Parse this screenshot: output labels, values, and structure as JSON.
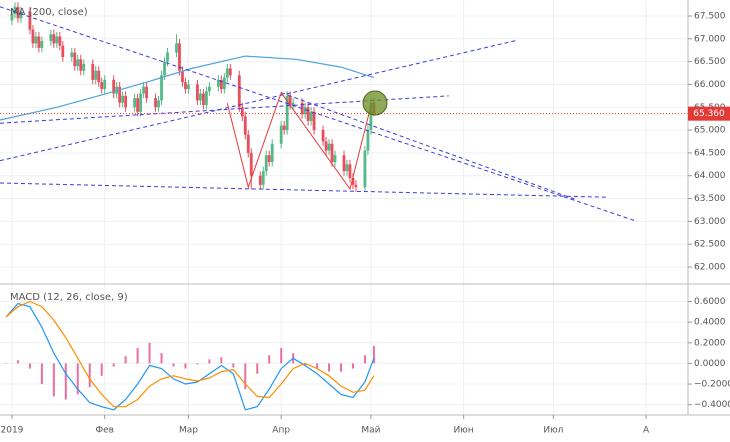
{
  "chart_data": [
    {
      "type": "candlestick",
      "up_color": "#53b987",
      "down_color": "#eb4d5c",
      "xlim": [
        -4,
        225
      ],
      "ylim": [
        61.65,
        67.85
      ],
      "yticks": [
        {
          "value": 67.5,
          "label": "67.500"
        },
        {
          "value": 67.0,
          "label": "67.000"
        },
        {
          "value": 66.5,
          "label": "66.500"
        },
        {
          "value": 66.0,
          "label": "66.000"
        },
        {
          "value": 65.5,
          "label": "65.500"
        },
        {
          "value": 65.0,
          "label": "65.000"
        },
        {
          "value": 64.5,
          "label": "64.500"
        },
        {
          "value": 64.0,
          "label": "64.000"
        },
        {
          "value": 63.5,
          "label": "63.500"
        },
        {
          "value": 63.0,
          "label": "63.000"
        },
        {
          "value": 62.5,
          "label": "62.500"
        },
        {
          "value": 62.0,
          "label": "62.000"
        }
      ],
      "grid": true,
      "x": [
        0,
        1,
        2,
        3,
        6,
        7,
        8,
        9,
        10,
        13,
        14,
        15,
        16,
        17,
        20,
        21,
        22,
        23,
        24,
        27,
        28,
        29,
        30,
        31,
        34,
        35,
        36,
        37,
        38,
        41,
        42,
        43,
        44,
        45,
        48,
        49,
        50,
        51,
        52,
        55,
        56,
        57,
        58,
        59,
        62,
        63,
        64,
        65,
        66,
        69,
        70,
        71,
        72,
        73,
        76,
        77,
        78,
        79,
        80,
        83,
        84,
        85,
        86,
        87,
        90,
        91,
        92,
        93,
        94,
        97,
        98,
        99,
        100,
        101,
        104,
        105,
        106,
        107,
        108,
        111,
        112,
        113,
        114,
        115,
        118,
        119,
        120,
        121
      ],
      "open": [
        67.4,
        67.55,
        67.7,
        67.45,
        67.6,
        67.2,
        66.9,
        67.05,
        66.8,
        66.95,
        67.1,
        66.9,
        67.05,
        66.85,
        66.6,
        66.7,
        66.4,
        66.55,
        66.3,
        66.45,
        66.1,
        66.3,
        66.05,
        65.9,
        66.1,
        65.8,
        65.95,
        65.6,
        65.75,
        65.5,
        65.7,
        65.4,
        65.8,
        65.95,
        65.7,
        65.5,
        65.65,
        66.2,
        66.5,
        66.7,
        66.9,
        66.3,
        66.05,
        65.9,
        66.0,
        65.65,
        65.8,
        65.55,
        65.85,
        65.95,
        66.1,
        65.9,
        66.15,
        66.35,
        66.2,
        65.5,
        65.3,
        64.9,
        64.5,
        64.0,
        63.8,
        64.1,
        64.45,
        64.3,
        64.7,
        65.1,
        65.0,
        65.75,
        65.55,
        65.6,
        65.35,
        65.5,
        65.2,
        65.4,
        65.0,
        64.75,
        64.55,
        64.7,
        64.3,
        64.45,
        64.1,
        64.25,
        63.95,
        63.8,
        63.75,
        64.55,
        65.0,
        65.6
      ],
      "high": [
        67.65,
        67.8,
        67.8,
        67.7,
        67.7,
        67.3,
        67.15,
        67.15,
        67.05,
        67.2,
        67.2,
        67.15,
        67.15,
        66.95,
        66.8,
        66.8,
        66.65,
        66.65,
        66.55,
        66.55,
        66.4,
        66.4,
        66.15,
        66.2,
        66.2,
        66.05,
        66.05,
        65.85,
        65.85,
        65.8,
        65.8,
        65.9,
        66.05,
        66.05,
        65.8,
        65.75,
        66.3,
        66.6,
        66.8,
        67.1,
        67.0,
        66.4,
        66.15,
        66.1,
        66.1,
        65.9,
        65.9,
        65.95,
        66.05,
        66.2,
        66.2,
        66.25,
        66.45,
        66.45,
        66.3,
        65.6,
        65.4,
        65.0,
        64.6,
        64.1,
        64.2,
        64.55,
        64.55,
        64.8,
        65.2,
        65.2,
        65.85,
        65.85,
        65.7,
        65.7,
        65.6,
        65.6,
        65.5,
        65.5,
        65.1,
        64.85,
        64.8,
        64.8,
        64.55,
        64.55,
        64.35,
        64.35,
        64.05,
        63.9,
        64.65,
        65.1,
        65.7,
        65.7
      ],
      "low": [
        67.3,
        67.45,
        67.35,
        67.35,
        67.1,
        66.8,
        66.8,
        66.7,
        66.7,
        66.85,
        66.8,
        66.8,
        66.75,
        66.5,
        66.5,
        66.3,
        66.3,
        66.2,
        66.2,
        66.0,
        66.0,
        65.95,
        65.8,
        65.8,
        65.7,
        65.7,
        65.5,
        65.5,
        65.4,
        65.4,
        65.3,
        65.3,
        65.7,
        65.6,
        65.4,
        65.4,
        65.55,
        66.1,
        66.4,
        66.6,
        66.2,
        65.95,
        65.8,
        65.8,
        65.55,
        65.55,
        65.45,
        65.45,
        65.75,
        65.85,
        65.8,
        65.8,
        66.05,
        66.1,
        65.4,
        65.2,
        64.8,
        64.4,
        63.7,
        63.7,
        63.7,
        64.0,
        64.2,
        64.2,
        64.6,
        64.9,
        64.9,
        65.45,
        65.45,
        65.25,
        65.25,
        65.1,
        65.1,
        64.9,
        64.65,
        64.45,
        64.45,
        64.2,
        64.2,
        64.0,
        64.0,
        63.85,
        63.7,
        63.65,
        63.65,
        64.45,
        64.9,
        65.3
      ],
      "close": [
        67.55,
        67.7,
        67.45,
        67.6,
        67.2,
        66.9,
        67.05,
        66.8,
        66.95,
        67.1,
        66.9,
        67.05,
        66.85,
        66.6,
        66.7,
        66.4,
        66.55,
        66.3,
        66.45,
        66.1,
        66.3,
        66.05,
        65.9,
        66.1,
        65.8,
        65.95,
        65.6,
        65.75,
        65.5,
        65.7,
        65.4,
        65.8,
        65.95,
        65.7,
        65.5,
        65.65,
        66.2,
        66.5,
        66.7,
        66.9,
        66.3,
        66.05,
        65.9,
        66.0,
        65.65,
        65.8,
        65.55,
        65.85,
        65.95,
        66.1,
        65.9,
        66.15,
        66.35,
        66.2,
        65.5,
        65.3,
        64.9,
        64.5,
        64.0,
        63.8,
        64.1,
        64.45,
        64.3,
        64.7,
        65.1,
        65.0,
        65.75,
        65.55,
        65.6,
        65.35,
        65.5,
        65.2,
        65.4,
        65.0,
        64.75,
        64.55,
        64.7,
        64.3,
        64.45,
        64.1,
        64.25,
        63.95,
        63.8,
        63.75,
        64.55,
        65.0,
        65.6,
        65.36
      ],
      "series": [
        {
          "name": "MA (200, close)",
          "color": "#4ea3d8",
          "x": [
            -4,
            15,
            30,
            45,
            60,
            78,
            95,
            110,
            121
          ],
          "values": [
            65.22,
            65.5,
            65.77,
            66.05,
            66.35,
            66.62,
            66.55,
            66.38,
            66.15
          ]
        }
      ],
      "trendlines": [
        {
          "color": "#3b3bdc",
          "dashed": true,
          "x": [
            -4,
            209
          ],
          "y": [
            67.7,
            63.0
          ]
        },
        {
          "color": "#3b3bdc",
          "dashed": true,
          "x": [
            -4,
            169
          ],
          "y": [
            64.33,
            66.97
          ]
        },
        {
          "color": "#3b3bdc",
          "dashed": true,
          "x": [
            -4,
            146
          ],
          "y": [
            65.15,
            65.75
          ]
        },
        {
          "color": "#3b3bdc",
          "dashed": true,
          "x": [
            -4,
            199
          ],
          "y": [
            63.84,
            63.53
          ]
        },
        {
          "color": "#3b3bdc",
          "dashed": true,
          "x": [
            90,
            188
          ],
          "y": [
            65.82,
            63.49
          ]
        },
        {
          "color": "#e53935",
          "dashed": false,
          "x": [
            72,
            79,
            90,
            113,
            120
          ],
          "y": [
            65.59,
            63.75,
            65.82,
            63.71,
            65.53
          ]
        }
      ],
      "price_marker": {
        "value": 65.36,
        "label": "65.360",
        "color": "#e53935"
      }
    },
    {
      "type": "macd",
      "title": "MACD (12, 26, close, 9)",
      "xlim": [
        -4,
        225
      ],
      "ylim": [
        -0.5,
        0.76
      ],
      "yticks": [
        {
          "value": 0.6,
          "label": "0.6000"
        },
        {
          "value": 0.4,
          "label": "0.4000"
        },
        {
          "value": 0.2,
          "label": "0.2000"
        },
        {
          "value": 0,
          "label": "0.0000"
        },
        {
          "value": -0.2,
          "label": "−0.2000"
        },
        {
          "value": -0.4,
          "label": "−0.4000"
        }
      ],
      "xticks": [
        {
          "value": 0,
          "label": "2019"
        },
        {
          "value": 31,
          "label": "Фев"
        },
        {
          "value": 59,
          "label": "Мар"
        },
        {
          "value": 90,
          "label": "Апр"
        },
        {
          "value": 120,
          "label": "Май"
        },
        {
          "value": 151,
          "label": "Июн"
        },
        {
          "value": 181,
          "label": "Июл"
        },
        {
          "value": 212,
          "label": "А"
        }
      ],
      "grid": true,
      "x": [
        -2,
        2,
        6,
        10,
        14,
        18,
        22,
        26,
        30,
        34,
        38,
        42,
        46,
        50,
        54,
        58,
        62,
        66,
        70,
        74,
        78,
        82,
        86,
        90,
        94,
        98,
        102,
        106,
        110,
        114,
        118,
        121
      ],
      "histogram": {
        "color": "#ec6fa0",
        "values": [
          0,
          0.03,
          -0.05,
          -0.2,
          -0.32,
          -0.35,
          -0.3,
          -0.23,
          -0.12,
          -0.03,
          0.07,
          0.15,
          0.2,
          0.1,
          -0.03,
          -0.05,
          -0.01,
          0.04,
          0.06,
          -0.04,
          -0.25,
          -0.1,
          0.08,
          0.15,
          0.1,
          -0.02,
          -0.05,
          -0.08,
          -0.08,
          -0.05,
          0.08,
          0.17
        ]
      },
      "series": [
        {
          "color": "#2196f3",
          "values": [
            0.45,
            0.58,
            0.55,
            0.35,
            0.1,
            -0.1,
            -0.25,
            -0.38,
            -0.42,
            -0.45,
            -0.35,
            -0.2,
            -0.02,
            -0.05,
            -0.15,
            -0.2,
            -0.18,
            -0.1,
            -0.02,
            -0.1,
            -0.45,
            -0.42,
            -0.25,
            -0.05,
            0.05,
            -0.02,
            -0.1,
            -0.2,
            -0.3,
            -0.33,
            -0.18,
            0.05
          ]
        },
        {
          "color": "#ff8f00",
          "values": [
            0.45,
            0.55,
            0.6,
            0.55,
            0.42,
            0.25,
            0.05,
            -0.15,
            -0.3,
            -0.42,
            -0.42,
            -0.35,
            -0.22,
            -0.15,
            -0.12,
            -0.15,
            -0.17,
            -0.14,
            -0.08,
            -0.06,
            -0.2,
            -0.32,
            -0.33,
            -0.2,
            -0.05,
            0.0,
            -0.05,
            -0.12,
            -0.22,
            -0.28,
            -0.26,
            -0.12
          ]
        }
      ]
    }
  ]
}
